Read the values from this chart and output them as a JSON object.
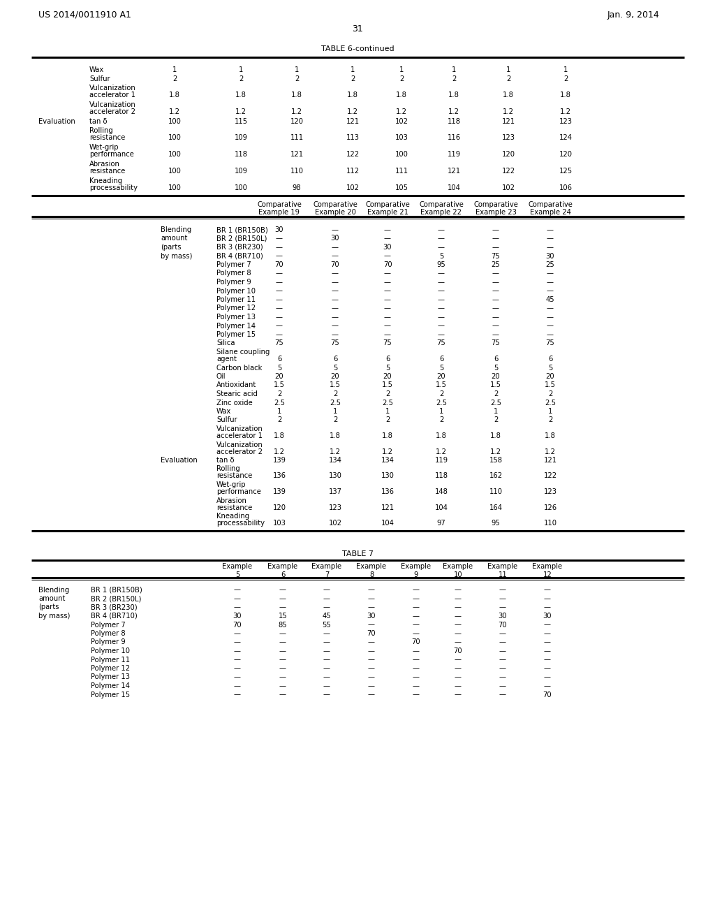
{
  "header_left": "US 2014/0011910 A1",
  "header_right": "Jan. 9, 2014",
  "page_number": "31",
  "table6_title": "TABLE 6-continued",
  "table7_title": "TABLE 7",
  "bg": "#ffffff",
  "fg": "#000000",
  "fs": 7.2,
  "fs_header": 9.0,
  "fs_title": 8.0
}
